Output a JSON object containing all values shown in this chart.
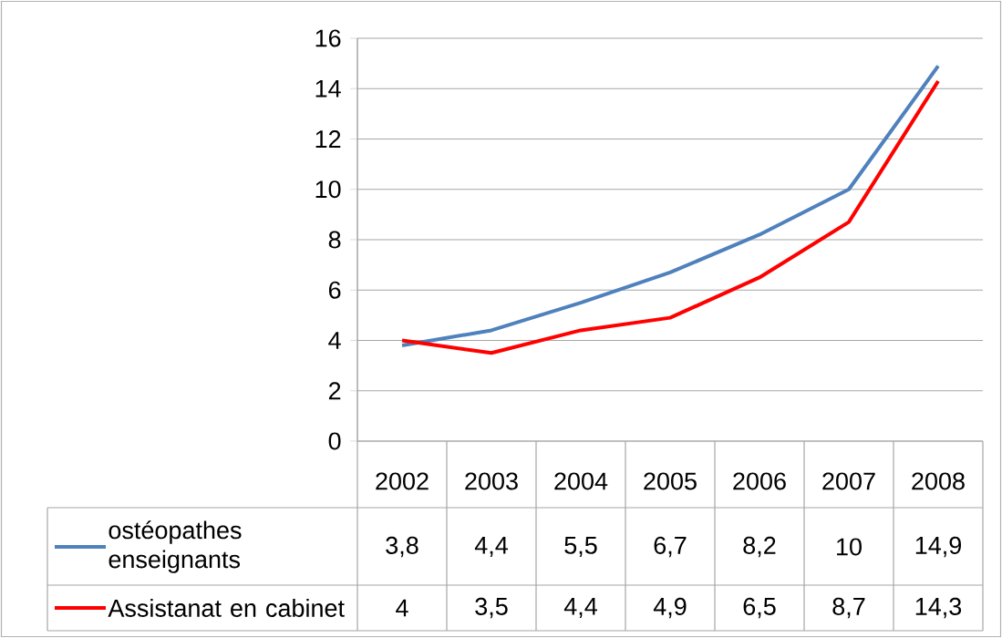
{
  "chart_data": {
    "type": "line",
    "categories": [
      "2002",
      "2003",
      "2004",
      "2005",
      "2006",
      "2007",
      "2008"
    ],
    "series": [
      {
        "name": "ostéopathes enseignants",
        "color": "#4f81bd",
        "values": [
          3.8,
          4.4,
          5.5,
          6.7,
          8.2,
          10,
          14.9
        ],
        "value_labels": [
          "3,8",
          "4,4",
          "5,5",
          "6,7",
          "8,2",
          "10",
          "14,9"
        ]
      },
      {
        "name": "Assistanat en cabinet",
        "color": "#ff0000",
        "values": [
          4,
          3.5,
          4.4,
          4.9,
          6.5,
          8.7,
          14.3
        ],
        "value_labels": [
          "4",
          "3,5",
          "4,4",
          "4,9",
          "6,5",
          "8,7",
          "14,3"
        ]
      }
    ],
    "ylim": [
      0,
      16
    ],
    "yticks": [
      0,
      2,
      4,
      6,
      8,
      10,
      12,
      14,
      16
    ],
    "grid": "y",
    "legend": "bottom"
  }
}
